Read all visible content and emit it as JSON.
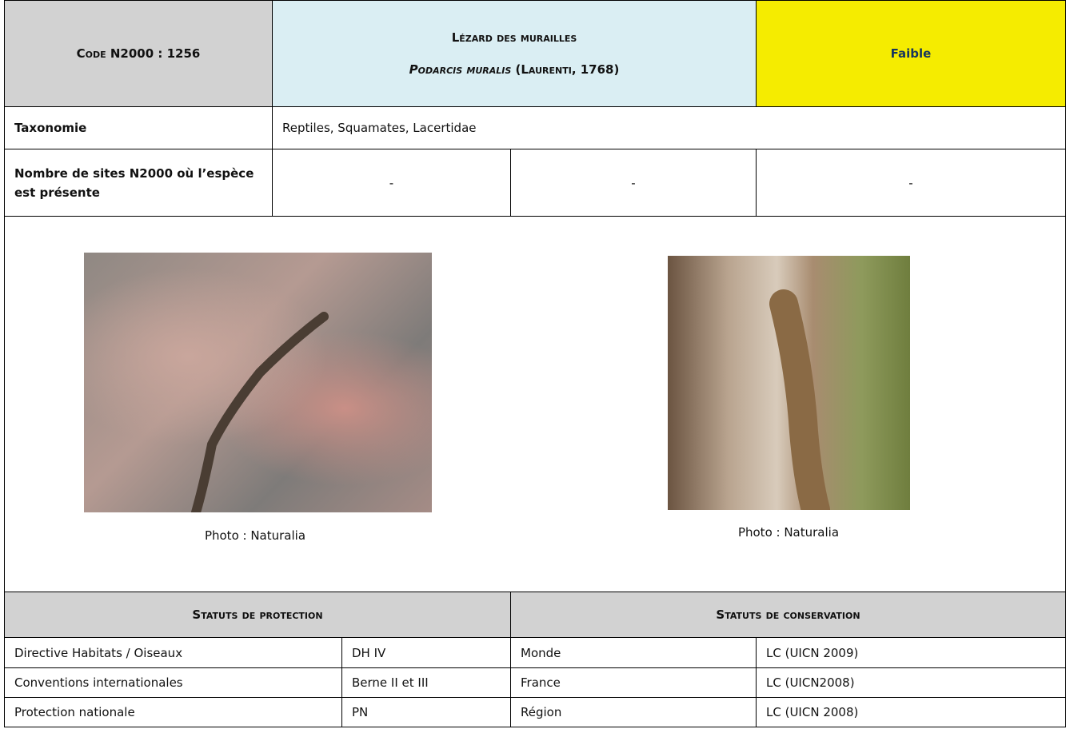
{
  "header": {
    "code": "Code N2000 : 1256",
    "common_name": "Lézard des murailles",
    "scientific_name": "Podarcis muralis",
    "author": "(Laurenti, 1768)",
    "priority": "Faible"
  },
  "taxonomy": {
    "label": "Taxonomie",
    "value": "Reptiles, Squamates, Lacertidae"
  },
  "sites": {
    "label": "Nombre de sites N2000 où l’espèce est présente",
    "values": [
      "-",
      "-",
      "-"
    ]
  },
  "photos": [
    {
      "caption": "Photo : Naturalia"
    },
    {
      "caption": "Photo : Naturalia"
    }
  ],
  "protection": {
    "title": "Statuts de protection",
    "rows": [
      [
        "Directive Habitats / Oiseaux",
        "DH IV"
      ],
      [
        "Conventions internationales",
        "Berne II et III"
      ],
      [
        "Protection nationale",
        "PN"
      ]
    ]
  },
  "conservation": {
    "title": "Statuts de conservation",
    "rows": [
      [
        "Monde",
        "LC (UICN 2009)"
      ],
      [
        "France",
        "LC (UICN2008)"
      ],
      [
        "Région",
        "LC (UICN 2008)"
      ]
    ]
  }
}
